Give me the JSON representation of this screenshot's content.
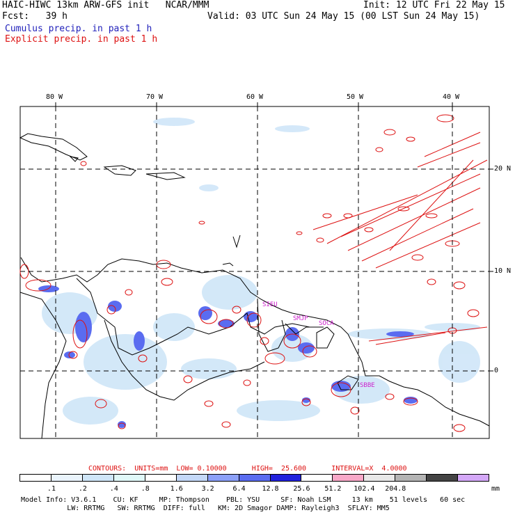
{
  "header": {
    "line1_left": "HAIC-HIWC 13km ARW-GFS init   NCAR/MMM",
    "line1_right": "Init: 12 UTC Fri 22 May 15",
    "line2_left": "Fcst:   39 h",
    "line2_right": "Valid: 03 UTC Sun 24 May 15 (00 LST Sun 24 May 15)",
    "line3": "Cumulus precip. in past 1 h",
    "line4": "Explicit precip. in past 1 h",
    "line3_color": "#2222bb",
    "line4_color": "#dd1111"
  },
  "map": {
    "lon_labels": [
      "80 W",
      "70 W",
      "60 W",
      "50 W",
      "40 W"
    ],
    "lat_labels": [
      "20 N",
      "10 N",
      "0"
    ],
    "stations": [
      "SIEU",
      "SMJP",
      "SOCA",
      "SBBE"
    ],
    "station_color": "#cc22cc"
  },
  "contours": {
    "text": "CONTOURS:  UNITS=mm  LOW= 0.10000      HIGH=  25.600      INTERVAL=X  4.0000"
  },
  "colorbar": {
    "colors": [
      "#ffffff",
      "#eaf4fc",
      "#cfe6f8",
      "#e0f8f8",
      "#ffffff",
      "#c4d8f8",
      "#8ca0f8",
      "#5a6cf0",
      "#2222dd",
      "#ffffff",
      "#f8a8c8",
      "#e8e8e8",
      "#b4b4b4",
      "#444444",
      "#d4a8f8"
    ],
    "labels": [
      ".1",
      ".2",
      ".4",
      ".8",
      "1.6",
      "3.2",
      "6.4",
      "12.8",
      "25.6",
      "51.2",
      "102.4",
      "204.8"
    ],
    "unit": "mm"
  },
  "model_info": {
    "line1": "Model Info: V3.6.1    CU: KF     MP: Thompson    PBL: YSU     SF: Noah LSM     13 km    51 levels   60 sec",
    "line2": "           LW: RRTMG   SW: RRTMG  DIFF: full   KM: 2D Smagor DAMP: Rayleigh3  SFLAY: MM5"
  }
}
